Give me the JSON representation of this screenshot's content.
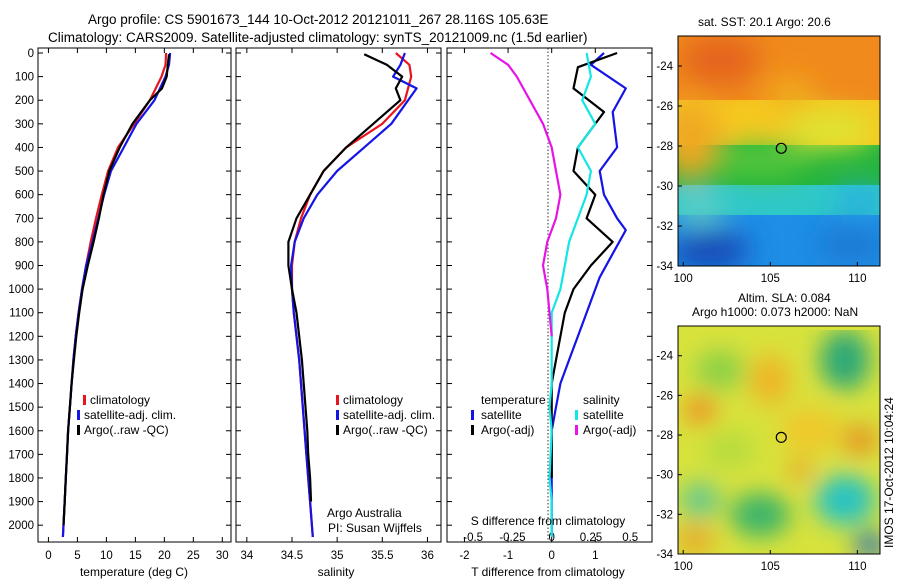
{
  "figure": {
    "title_line1": "Argo profile: CS 5901673_144 10-Oct-2012 20121011_267 28.116S 105.63E",
    "title_line2": "Climatology: CARS2009. Satellite-adjusted climatology: synTS_20121009.nc (1.5d earlier)",
    "footer": "Argo Australia",
    "footer_pi": "PI: Susan Wijffels",
    "imos_stamp": "IMOS 17-Oct-2012 10:04:24",
    "colors": {
      "climatology": "#e8141e",
      "satellite": "#1414e6",
      "argo": "#000000",
      "satellite_s": "#14e6e6",
      "argo_s": "#e614e6"
    }
  },
  "chart_data": [
    {
      "type": "line",
      "xlabel": "temperature (deg C)",
      "xticks": [
        0,
        5,
        10,
        15,
        20,
        25,
        30
      ],
      "xlim": [
        -1.8,
        31.5
      ],
      "yticks": [
        0,
        100,
        200,
        300,
        400,
        500,
        600,
        700,
        800,
        900,
        1000,
        1100,
        1200,
        1300,
        1400,
        1500,
        1600,
        1700,
        1800,
        1900,
        2000
      ],
      "ylim": [
        2050,
        0
      ],
      "legend": [
        "climatology",
        "satellite-adj. clim.",
        "Argo(..raw -QC)"
      ],
      "series": [
        {
          "name": "climatology",
          "color": "#e8141e",
          "x": [
            20.3,
            20.2,
            19.5,
            17.5,
            14.8,
            12.0,
            10.3,
            9.2,
            8.2,
            7.3,
            6.5,
            5.8,
            5.2,
            4.7,
            4.3,
            4.0,
            3.7,
            3.4,
            3.2,
            3.0,
            2.8,
            2.6,
            2.5
          ],
          "y": [
            0,
            50,
            100,
            200,
            300,
            400,
            500,
            600,
            700,
            800,
            900,
            1000,
            1100,
            1200,
            1300,
            1400,
            1500,
            1600,
            1700,
            1800,
            1900,
            2000,
            2050
          ]
        },
        {
          "name": "satellite-adj. clim.",
          "color": "#1414e6",
          "x": [
            21.0,
            20.8,
            20.2,
            18.3,
            15.2,
            13.0,
            10.8,
            9.6,
            8.6,
            7.6,
            6.5,
            5.8,
            5.2,
            4.7,
            4.3,
            4.0,
            3.7,
            3.4,
            3.2,
            3.0,
            2.8,
            2.6,
            2.5
          ],
          "y": [
            0,
            50,
            100,
            200,
            300,
            400,
            500,
            600,
            700,
            800,
            900,
            1000,
            1100,
            1200,
            1300,
            1400,
            1500,
            1600,
            1700,
            1800,
            1900,
            2000,
            2050
          ]
        },
        {
          "name": "Argo(..raw -QC)",
          "color": "#000000",
          "x": [
            20.8,
            20.6,
            20.4,
            19.6,
            17.5,
            14.5,
            12.3,
            10.5,
            9.5,
            8.7,
            7.8,
            6.8,
            5.9,
            5.3,
            4.8,
            4.4,
            4.0,
            3.7,
            3.4,
            3.2,
            3.0,
            2.8,
            2.6
          ],
          "y": [
            5,
            50,
            100,
            150,
            200,
            300,
            400,
            500,
            600,
            700,
            800,
            900,
            1000,
            1100,
            1200,
            1300,
            1400,
            1500,
            1600,
            1700,
            1800,
            1900,
            2000
          ]
        }
      ]
    },
    {
      "type": "line",
      "xlabel": "salinity",
      "xticks": [
        34,
        34.5,
        35,
        35.5,
        36
      ],
      "xlim": [
        33.88,
        36.15
      ],
      "yticks": [
        0,
        100,
        200,
        300,
        400,
        500,
        600,
        700,
        800,
        900,
        1000,
        1100,
        1200,
        1300,
        1400,
        1500,
        1600,
        1700,
        1800,
        1900,
        2000
      ],
      "ylim": [
        2050,
        0
      ],
      "legend": [
        "climatology",
        "satellite-adj. clim.",
        "Argo(..raw -QC)"
      ],
      "series": [
        {
          "name": "climatology",
          "color": "#e8141e",
          "x": [
            35.65,
            35.8,
            35.82,
            35.75,
            35.5,
            35.1,
            34.85,
            34.7,
            34.6,
            34.53,
            34.5,
            34.5,
            34.52,
            34.55,
            34.58,
            34.6,
            34.62,
            34.64,
            34.66,
            34.68,
            34.7,
            34.72,
            34.73
          ],
          "y": [
            0,
            50,
            100,
            200,
            300,
            400,
            500,
            600,
            700,
            800,
            900,
            1000,
            1100,
            1200,
            1300,
            1400,
            1500,
            1600,
            1700,
            1800,
            1900,
            2000,
            2050
          ]
        },
        {
          "name": "satellite-adj. clim.",
          "color": "#1414e6",
          "x": [
            35.75,
            35.7,
            35.62,
            35.88,
            35.6,
            35.3,
            35.0,
            34.78,
            34.63,
            34.53,
            34.49,
            34.5,
            34.52,
            34.55,
            34.58,
            34.6,
            34.62,
            34.64,
            34.66,
            34.68,
            34.7,
            34.72,
            34.73
          ],
          "y": [
            0,
            50,
            100,
            150,
            300,
            400,
            500,
            600,
            700,
            800,
            900,
            1000,
            1100,
            1200,
            1300,
            1400,
            1500,
            1600,
            1700,
            1800,
            1900,
            2000,
            2050
          ]
        },
        {
          "name": "Argo(..raw -QC)",
          "color": "#000000",
          "x": [
            35.3,
            35.55,
            35.72,
            35.65,
            35.7,
            35.4,
            35.1,
            34.85,
            34.7,
            34.55,
            34.46,
            34.46,
            34.5,
            34.55,
            34.58,
            34.61,
            34.63,
            34.65,
            34.67,
            34.68,
            34.7,
            34.71
          ],
          "y": [
            5,
            50,
            100,
            150,
            200,
            300,
            400,
            500,
            600,
            700,
            800,
            900,
            1000,
            1100,
            1200,
            1300,
            1400,
            1500,
            1600,
            1700,
            1800,
            1900
          ]
        }
      ]
    },
    {
      "type": "line",
      "xlabel": "T difference from climatology",
      "xlabel_top": "S difference from climatology",
      "xticks": [
        -2,
        -1,
        0,
        1
      ],
      "xticks_top": [
        "-0.5",
        "-0.25",
        "0",
        "0.25",
        "0.5"
      ],
      "xlim": [
        -2.4,
        2.3
      ],
      "yticks": [
        0,
        100,
        200,
        300,
        400,
        500,
        600,
        700,
        800,
        900,
        1000,
        1100,
        1200,
        1300,
        1400,
        1500,
        1600,
        1700,
        1800,
        1900,
        2000
      ],
      "ylim": [
        2050,
        0
      ],
      "legend": {
        "temperature_header": "temperature",
        "salinity_header": "salinity",
        "items": [
          "satellite",
          "Argo(-adj)",
          "satellite",
          "Argo(-adj)"
        ]
      },
      "series": [
        {
          "name": "temperature satellite",
          "color": "#1414e6",
          "x": [
            1.2,
            0.9,
            1.7,
            1.4,
            1.5,
            1.1,
            1.2,
            1.5,
            1.7,
            1.4,
            1.1,
            0.8,
            0.6,
            0.4,
            0.2,
            0.1,
            0.0,
            0.0,
            0.0,
            0.0,
            0.0,
            0.0
          ],
          "y": [
            0,
            50,
            150,
            250,
            400,
            500,
            600,
            700,
            750,
            850,
            950,
            1100,
            1200,
            1300,
            1400,
            1500,
            1600,
            1700,
            1800,
            1900,
            2000,
            2050
          ]
        },
        {
          "name": "temperature Argo(-adj)",
          "color": "#000000",
          "x": [
            1.5,
            0.6,
            0.5,
            1.2,
            0.6,
            0.5,
            1.0,
            0.8,
            1.4,
            0.9,
            0.5,
            0.3,
            0.2,
            0.1,
            0.0,
            0.0,
            0.0,
            0.0,
            0.0
          ],
          "y": [
            0,
            60,
            150,
            250,
            400,
            500,
            600,
            700,
            800,
            900,
            1000,
            1100,
            1200,
            1300,
            1400,
            1500,
            1600,
            1700,
            1800
          ]
        },
        {
          "name": "salinity satellite",
          "color": "#14e6e6",
          "x": [
            0.8,
            0.9,
            0.7,
            1.0,
            0.6,
            0.9,
            0.8,
            0.6,
            0.4,
            0.3,
            0.2,
            0.0,
            0.0,
            0.0,
            -0.05,
            0.0,
            -0.05,
            0.0,
            0.0
          ],
          "y": [
            0,
            100,
            200,
            300,
            400,
            500,
            600,
            700,
            800,
            900,
            1000,
            1100,
            1200,
            1400,
            1500,
            1600,
            1800,
            1900,
            2050
          ]
        },
        {
          "name": "salinity Argo(-adj)",
          "color": "#e614e6",
          "x": [
            -1.4,
            -1.0,
            -0.8,
            -0.2,
            0.0,
            0.1,
            0.2,
            0.1,
            -0.1,
            -0.2,
            -0.1,
            -0.05,
            0.0
          ],
          "y": [
            0,
            50,
            100,
            300,
            400,
            500,
            600,
            700,
            800,
            900,
            1000,
            1100,
            1200
          ]
        }
      ]
    },
    {
      "type": "heatmap",
      "title": "sat. SST: 20.1  Argo: 20.6",
      "xticks": [
        100,
        105,
        110
      ],
      "yticks": [
        -24,
        -26,
        -28,
        -30,
        -32,
        -34
      ],
      "xlim": [
        99.7,
        111.3
      ],
      "ylim": [
        -34,
        -22.5
      ],
      "marker": {
        "lon": 105.63,
        "lat": -28.116
      }
    },
    {
      "type": "heatmap",
      "title": "Altim. SLA: 0.084",
      "title_line2": "Argo h1000: 0.073 h2000: NaN",
      "xticks": [
        100,
        105,
        110
      ],
      "yticks": [
        -24,
        -26,
        -28,
        -30,
        -32,
        -34
      ],
      "xlim": [
        99.7,
        111.3
      ],
      "ylim": [
        -34,
        -22.5
      ],
      "marker": {
        "lon": 105.63,
        "lat": -28.116
      }
    }
  ]
}
